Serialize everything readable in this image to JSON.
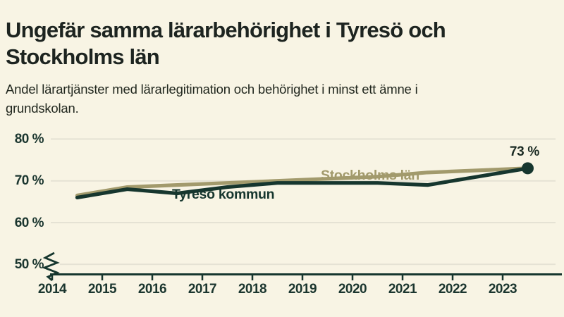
{
  "header": {
    "title_line1": "Ungefär samma lärarbehörighet i Tyresö och",
    "title_line2": "Stockholms län",
    "subtitle_line1": "Andel lärartjänster med lärarlegitimation och behörighet i minst ett ämne i",
    "subtitle_line2": "grundskolan."
  },
  "colors": {
    "background": "#f8f4e4",
    "dark": "#16362e",
    "olive": "#a29a6c",
    "gridline": "#e5e2d4",
    "axis_text": "#1b362f",
    "annotation": "#1b2b23"
  },
  "chart_data": {
    "type": "line",
    "title": "Ungefär samma lärarbehörighet i Tyresö och Stockholms län",
    "subtitle": "Andel lärartjänster med lärarlegitimation och behörighet i minst ett ämne i grundskolan.",
    "x": [
      2014,
      2015,
      2016,
      2017,
      2018,
      2019,
      2020,
      2021,
      2022,
      2023
    ],
    "series": [
      {
        "name": "Stockholms län",
        "color": "#a29a6c",
        "values": [
          66.5,
          68.5,
          69,
          69.5,
          70,
          70.5,
          71,
          72,
          72.5,
          73
        ]
      },
      {
        "name": "Tyresö kommun",
        "color": "#16362e",
        "values": [
          66,
          68,
          67,
          68.5,
          69.5,
          69.5,
          69.5,
          69,
          71,
          73
        ]
      }
    ],
    "end_label": "73 %",
    "end_value": 73,
    "unit": "%",
    "y_axis": {
      "ticks": [
        {
          "label": "80 %",
          "value": 80
        },
        {
          "label": "70 %",
          "value": 70
        },
        {
          "label": "60 %",
          "value": 60
        },
        {
          "label": "50 %",
          "value": 50
        }
      ],
      "range_shown": [
        50,
        80
      ],
      "broken_axis": true
    },
    "x_axis": {
      "tick_labels": [
        "2014",
        "2015",
        "2016",
        "2017",
        "2018",
        "2019",
        "2020",
        "2021",
        "2022",
        "2023"
      ]
    },
    "grid": "horizontal",
    "legend_position": "labels-on-lines"
  }
}
